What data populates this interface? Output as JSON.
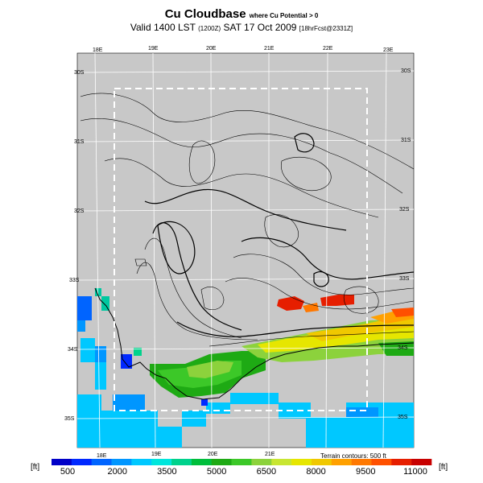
{
  "header": {
    "title": "Cu Cloudbase",
    "title_sub": "where Cu Potential > 0",
    "valid_prefix": "Valid 1400 LST",
    "valid_utc": "(1200Z)",
    "valid_date": "SAT 17 Oct 2009",
    "forecast": "[18hrFcst@2331Z]"
  },
  "map": {
    "lon_labels_top": [
      "18E",
      "19E",
      "20E",
      "21E",
      "22E",
      "23E"
    ],
    "lon_labels_bottom": [
      "18E",
      "19E",
      "20E",
      "21E"
    ],
    "lat_labels_left": [
      "30S",
      "31S",
      "32S",
      "33S",
      "34S",
      "35S"
    ],
    "lat_labels_right": [
      "30S",
      "31S",
      "32S",
      "33S",
      "34S",
      "35S"
    ],
    "terrain_note": "Terrain contours: 500 ft",
    "background_color": "#c8c8c8"
  },
  "colorbar": {
    "unit_left": "[ft]",
    "unit_right": "[ft]",
    "ticks": [
      "500",
      "2000",
      "3500",
      "5000",
      "6500",
      "8000",
      "9500",
      "11000"
    ],
    "colors": [
      "#0000c8",
      "#0028ff",
      "#0064ff",
      "#0096ff",
      "#00c8ff",
      "#00e6dc",
      "#00d28c",
      "#00be3c",
      "#1eaa14",
      "#3cc828",
      "#8cd23c",
      "#c8e632",
      "#e6e600",
      "#f0c800",
      "#ffa000",
      "#ff7800",
      "#ff5000",
      "#e61e00",
      "#c80000"
    ]
  }
}
